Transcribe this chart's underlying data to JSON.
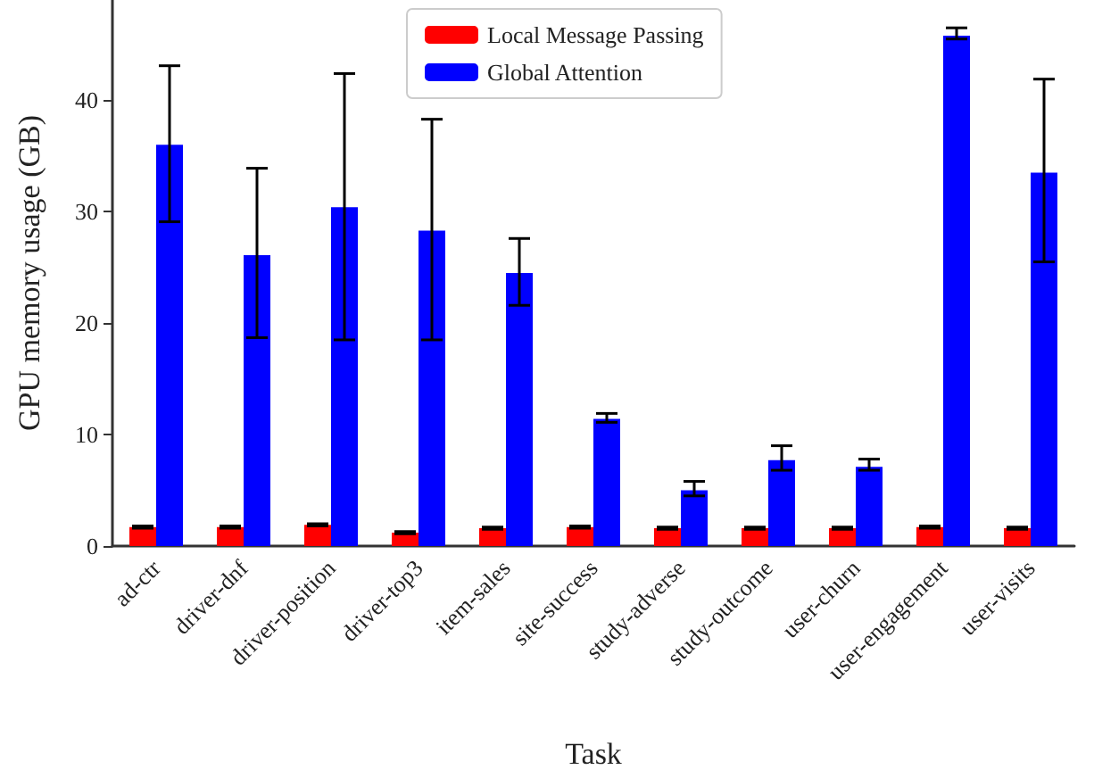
{
  "chart_data": {
    "type": "bar",
    "xlabel": "Task",
    "ylabel": "GPU memory usage (GB)",
    "categories": [
      "ad-ctr",
      "driver-dnf",
      "driver-position",
      "driver-top3",
      "item-sales",
      "site-success",
      "study-adverse",
      "study-outcome",
      "user-churn",
      "user-engagement",
      "user-visits"
    ],
    "series": [
      {
        "name": "Local Message Passing",
        "color": "#ff0000",
        "values": [
          1.7,
          1.7,
          1.9,
          1.2,
          1.6,
          1.7,
          1.6,
          1.6,
          1.6,
          1.7,
          1.6
        ],
        "errors": [
          0.1,
          0.1,
          0.1,
          0.1,
          0.1,
          0.1,
          0.1,
          0.1,
          0.1,
          0.1,
          0.1
        ]
      },
      {
        "name": "Global Attention",
        "color": "#0000ff",
        "values": [
          36.0,
          26.1,
          30.4,
          28.3,
          24.5,
          11.4,
          5.0,
          7.7,
          7.1,
          45.8,
          33.5
        ],
        "errors": [
          [
            29.1,
            43.1
          ],
          [
            18.7,
            33.9
          ],
          [
            18.5,
            42.4
          ],
          [
            18.5,
            38.3
          ],
          [
            21.6,
            27.6
          ],
          [
            11.1,
            11.9
          ],
          [
            4.5,
            5.8
          ],
          [
            6.8,
            9.0
          ],
          [
            6.8,
            7.8
          ],
          [
            45.5,
            46.5
          ],
          [
            25.5,
            41.9
          ]
        ]
      }
    ],
    "ylim": [
      0,
      49
    ],
    "yticks": [
      0,
      10,
      20,
      30,
      40
    ],
    "grid": false,
    "legend": "top"
  }
}
